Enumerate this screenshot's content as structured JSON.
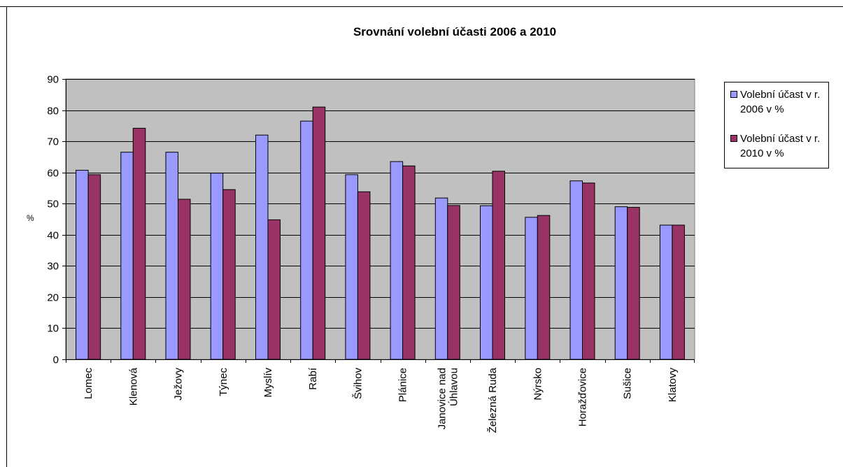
{
  "chart_data": {
    "type": "bar",
    "title": "Srovnání volební účasti 2006 a 2010",
    "ylabel": "%",
    "xlabel": "",
    "ylim": [
      0,
      90
    ],
    "ytick_step": 10,
    "grid": true,
    "legend_position": "right",
    "categories": [
      "Lomec",
      "Klenová",
      "Ježovy",
      "Týnec",
      "Myslív",
      "Rabí",
      "Švihov",
      "Plánice",
      "Janovice nad Úhlavou",
      "Železná Ruda",
      "Nýrsko",
      "Horažďovice",
      "Sušice",
      "Klatovy"
    ],
    "series": [
      {
        "name": "Volební účast v r. 2006 v %",
        "color": "#9999ff",
        "values": [
          60.7,
          66.5,
          66.5,
          59.8,
          72.0,
          76.5,
          59.3,
          63.5,
          51.8,
          49.3,
          45.6,
          57.3,
          49.0,
          43.1
        ]
      },
      {
        "name": "Volební účast v r. 2010 v %",
        "color": "#993366",
        "values": [
          59.3,
          74.2,
          51.4,
          54.5,
          44.8,
          81.0,
          53.8,
          62.1,
          49.4,
          60.4,
          46.2,
          56.6,
          48.8,
          43.1
        ]
      }
    ]
  },
  "colors": {
    "plot_background": "#c0c0c0",
    "gridline": "#000000"
  }
}
